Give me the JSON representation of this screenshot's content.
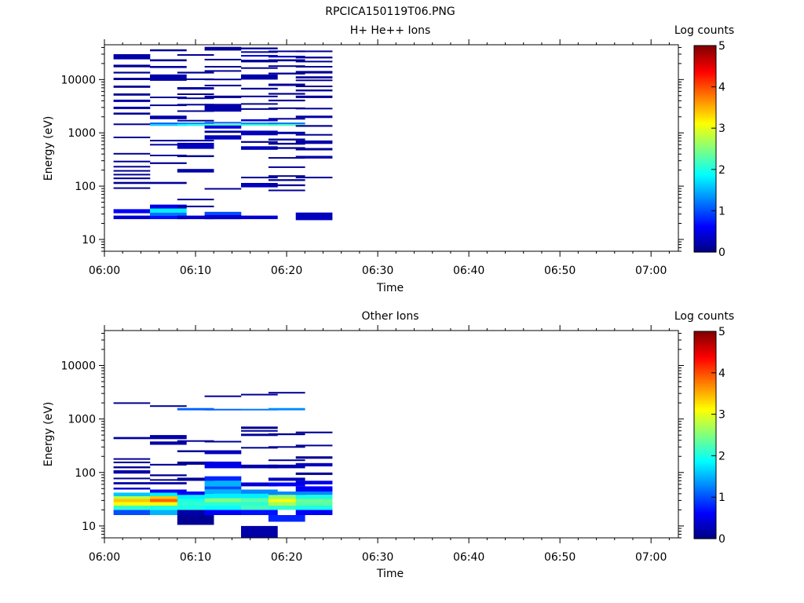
{
  "page_title": "RPCICA150119T06.PNG",
  "colorbar": {
    "label": "Log counts",
    "ticks": [
      "0",
      "1",
      "2",
      "3",
      "4",
      "5"
    ],
    "range": [
      0,
      5
    ]
  },
  "chart_data": [
    {
      "type": "heatmap",
      "title": "H+ He++ Ions",
      "xlabel": "Time",
      "ylabel": "Energy (eV)",
      "x_range": [
        "06:00",
        "07:03"
      ],
      "x_ticks": [
        "06:00",
        "06:10",
        "06:20",
        "06:30",
        "06:40",
        "06:50",
        "07:00"
      ],
      "y_scale": "log",
      "y_range": [
        6,
        45000
      ],
      "y_ticks": [
        "10",
        "100",
        "1000",
        "10000"
      ],
      "time_bins": [
        "06:01",
        "06:05",
        "06:08",
        "06:11",
        "06:15",
        "06:18",
        "06:21"
      ],
      "cells": [
        [
          0,
          24,
          28,
          0.4
        ],
        [
          0,
          31,
          37,
          0.6
        ],
        [
          0,
          90,
          95,
          0.1
        ],
        [
          0,
          110,
          120,
          0.1
        ],
        [
          0,
          135,
          145,
          0.1
        ],
        [
          0,
          160,
          170,
          0.1
        ],
        [
          0,
          190,
          200,
          0.1
        ],
        [
          0,
          225,
          240,
          0.1
        ],
        [
          0,
          280,
          300,
          0.1
        ],
        [
          0,
          400,
          420,
          0.1
        ],
        [
          0,
          800,
          850,
          0.1
        ],
        [
          0,
          1400,
          1500,
          0.1
        ],
        [
          0,
          2200,
          2400,
          0.1
        ],
        [
          0,
          2800,
          3100,
          0.2
        ],
        [
          0,
          3800,
          4200,
          0.2
        ],
        [
          0,
          5000,
          5500,
          0.1
        ],
        [
          0,
          7000,
          7700,
          0.1
        ],
        [
          0,
          9800,
          10800,
          0.1
        ],
        [
          0,
          13000,
          14000,
          0.1
        ],
        [
          0,
          17000,
          19000,
          0.1
        ],
        [
          0,
          24000,
          30000,
          0.2
        ],
        [
          1,
          24,
          28,
          0.7
        ],
        [
          1,
          28,
          32,
          1.2
        ],
        [
          1,
          32,
          38,
          1.8
        ],
        [
          1,
          38,
          45,
          0.5
        ],
        [
          1,
          110,
          120,
          0.1
        ],
        [
          1,
          260,
          280,
          0.1
        ],
        [
          1,
          370,
          390,
          0.1
        ],
        [
          1,
          580,
          620,
          0.2
        ],
        [
          1,
          700,
          740,
          0.1
        ],
        [
          1,
          1400,
          1450,
          1.6
        ],
        [
          1,
          1500,
          1560,
          1.1
        ],
        [
          1,
          1800,
          2100,
          0.2
        ],
        [
          1,
          3200,
          3400,
          0.1
        ],
        [
          1,
          4500,
          4800,
          0.1
        ],
        [
          1,
          9500,
          12500,
          0.2
        ],
        [
          1,
          16500,
          18000,
          0.2
        ],
        [
          1,
          22000,
          24000,
          0.1
        ],
        [
          1,
          34000,
          37000,
          0.1
        ],
        [
          2,
          24,
          28,
          0.4
        ],
        [
          2,
          40,
          43,
          0.1
        ],
        [
          2,
          55,
          58,
          0.1
        ],
        [
          2,
          180,
          210,
          0.2
        ],
        [
          2,
          350,
          380,
          0.1
        ],
        [
          2,
          500,
          650,
          0.3
        ],
        [
          2,
          700,
          740,
          0.1
        ],
        [
          2,
          1400,
          1450,
          1.9
        ],
        [
          2,
          1500,
          1560,
          1.3
        ],
        [
          2,
          1650,
          1750,
          0.1
        ],
        [
          2,
          2500,
          2650,
          0.1
        ],
        [
          2,
          3300,
          3500,
          0.1
        ],
        [
          2,
          4300,
          4600,
          0.2
        ],
        [
          2,
          5200,
          5500,
          0.1
        ],
        [
          2,
          6500,
          7200,
          0.2
        ],
        [
          2,
          10000,
          10500,
          0.1
        ],
        [
          2,
          13000,
          14000,
          0.1
        ],
        [
          2,
          28000,
          30000,
          0.1
        ],
        [
          3,
          24,
          29,
          0.4
        ],
        [
          3,
          29,
          33,
          1.0
        ],
        [
          3,
          88,
          92,
          0.1
        ],
        [
          3,
          750,
          900,
          0.3
        ],
        [
          3,
          1000,
          1100,
          0.1
        ],
        [
          3,
          1200,
          1380,
          0.5
        ],
        [
          3,
          1380,
          1470,
          2.3
        ],
        [
          3,
          1500,
          1600,
          1.1
        ],
        [
          3,
          2500,
          3500,
          0.2
        ],
        [
          3,
          4500,
          5000,
          0.1
        ],
        [
          3,
          7500,
          8000,
          0.1
        ],
        [
          3,
          9800,
          10400,
          0.1
        ],
        [
          3,
          14000,
          15000,
          0.1
        ],
        [
          3,
          17000,
          18000,
          0.1
        ],
        [
          3,
          23000,
          24500,
          0.1
        ],
        [
          3,
          35000,
          41000,
          0.1
        ],
        [
          4,
          24,
          28,
          0.4
        ],
        [
          4,
          95,
          115,
          0.3
        ],
        [
          4,
          140,
          150,
          0.1
        ],
        [
          4,
          480,
          560,
          0.3
        ],
        [
          4,
          650,
          700,
          0.1
        ],
        [
          4,
          900,
          1100,
          0.3
        ],
        [
          4,
          1400,
          1460,
          2.1
        ],
        [
          4,
          1500,
          1560,
          1.3
        ],
        [
          4,
          1650,
          1800,
          0.5
        ],
        [
          4,
          2700,
          2900,
          0.1
        ],
        [
          4,
          3400,
          3600,
          0.1
        ],
        [
          4,
          4700,
          5000,
          0.1
        ],
        [
          4,
          6500,
          7000,
          0.1
        ],
        [
          4,
          10000,
          12500,
          0.2
        ],
        [
          4,
          16000,
          17000,
          0.1
        ],
        [
          4,
          21000,
          23500,
          0.1
        ],
        [
          4,
          27000,
          29000,
          0.6
        ],
        [
          4,
          32000,
          34000,
          0.2
        ],
        [
          4,
          37000,
          40000,
          0.1
        ],
        [
          5,
          82,
          86,
          0.1
        ],
        [
          5,
          100,
          108,
          0.1
        ],
        [
          5,
          125,
          135,
          0.1
        ],
        [
          5,
          150,
          160,
          0.1
        ],
        [
          5,
          220,
          235,
          0.1
        ],
        [
          5,
          330,
          350,
          0.1
        ],
        [
          5,
          500,
          540,
          0.1
        ],
        [
          5,
          600,
          650,
          0.1
        ],
        [
          5,
          720,
          780,
          0.1
        ],
        [
          5,
          950,
          1050,
          0.2
        ],
        [
          5,
          1380,
          1450,
          2.2
        ],
        [
          5,
          1500,
          1560,
          1.2
        ],
        [
          5,
          1800,
          1900,
          0.1
        ],
        [
          5,
          2800,
          3000,
          0.1
        ],
        [
          5,
          3900,
          4200,
          0.1
        ],
        [
          5,
          5200,
          5600,
          0.1
        ],
        [
          5,
          7600,
          8400,
          0.1
        ],
        [
          5,
          12500,
          13500,
          0.1
        ],
        [
          5,
          17500,
          18500,
          0.1
        ],
        [
          5,
          22000,
          24000,
          0.1
        ],
        [
          5,
          26000,
          28000,
          0.3
        ],
        [
          5,
          33000,
          35000,
          0.1
        ],
        [
          6,
          23,
          32,
          0.3
        ],
        [
          6,
          140,
          150,
          0.1
        ],
        [
          6,
          330,
          370,
          0.2
        ],
        [
          6,
          470,
          520,
          0.1
        ],
        [
          6,
          620,
          720,
          0.2
        ],
        [
          6,
          900,
          950,
          0.1
        ],
        [
          6,
          1300,
          1400,
          0.1
        ],
        [
          6,
          1900,
          2100,
          0.2
        ],
        [
          6,
          2800,
          2950,
          0.1
        ],
        [
          6,
          4500,
          5000,
          0.1
        ],
        [
          6,
          6000,
          6500,
          0.1
        ],
        [
          6,
          7200,
          7700,
          0.1
        ],
        [
          6,
          9500,
          10000,
          0.1
        ],
        [
          6,
          10500,
          11500,
          0.1
        ],
        [
          6,
          13000,
          14500,
          0.1
        ],
        [
          6,
          17000,
          18000,
          0.1
        ],
        [
          6,
          21000,
          22500,
          0.1
        ],
        [
          6,
          25000,
          27000,
          0.1
        ],
        [
          6,
          33000,
          35000,
          0.1
        ]
      ]
    },
    {
      "type": "heatmap",
      "title": "Other Ions",
      "xlabel": "Time",
      "ylabel": "Energy (eV)",
      "x_range": [
        "06:00",
        "07:03"
      ],
      "x_ticks": [
        "06:00",
        "06:10",
        "06:20",
        "06:30",
        "06:40",
        "06:50",
        "07:00"
      ],
      "y_scale": "log",
      "y_range": [
        6,
        45000
      ],
      "y_ticks": [
        "10",
        "100",
        "1000",
        "10000"
      ],
      "time_bins": [
        "06:01",
        "06:05",
        "06:08",
        "06:11",
        "06:15",
        "06:18",
        "06:21"
      ],
      "cells": [
        [
          0,
          16,
          20,
          1.0
        ],
        [
          0,
          20,
          24,
          2.1
        ],
        [
          0,
          24,
          28,
          3.1
        ],
        [
          0,
          28,
          32,
          3.4
        ],
        [
          0,
          32,
          36,
          2.8
        ],
        [
          0,
          36,
          42,
          1.6
        ],
        [
          0,
          48,
          52,
          0.4
        ],
        [
          0,
          60,
          66,
          0.2
        ],
        [
          0,
          75,
          80,
          0.1
        ],
        [
          0,
          95,
          110,
          0.2
        ],
        [
          0,
          120,
          130,
          0.1
        ],
        [
          0,
          150,
          160,
          0.1
        ],
        [
          0,
          175,
          185,
          0.1
        ],
        [
          0,
          420,
          460,
          0.2
        ],
        [
          0,
          1950,
          2050,
          0.1
        ],
        [
          1,
          16,
          20,
          1.5
        ],
        [
          1,
          20,
          24,
          2.0
        ],
        [
          1,
          24,
          28,
          3.1
        ],
        [
          1,
          28,
          32,
          3.9
        ],
        [
          1,
          32,
          36,
          3.4
        ],
        [
          1,
          36,
          42,
          1.8
        ],
        [
          1,
          42,
          48,
          0.6
        ],
        [
          1,
          60,
          66,
          0.2
        ],
        [
          1,
          70,
          75,
          0.1
        ],
        [
          1,
          85,
          92,
          0.1
        ],
        [
          1,
          135,
          145,
          0.1
        ],
        [
          1,
          330,
          380,
          0.2
        ],
        [
          1,
          420,
          500,
          0.2
        ],
        [
          1,
          1700,
          1800,
          0.1
        ],
        [
          2,
          10.5,
          16,
          0.1
        ],
        [
          2,
          16,
          20,
          0.2
        ],
        [
          2,
          20,
          24,
          2.0
        ],
        [
          2,
          24,
          28,
          2.1
        ],
        [
          2,
          28,
          32,
          2.0
        ],
        [
          2,
          32,
          38,
          1.8
        ],
        [
          2,
          38,
          44,
          0.6
        ],
        [
          2,
          70,
          80,
          0.1
        ],
        [
          2,
          140,
          160,
          0.1
        ],
        [
          2,
          240,
          260,
          0.1
        ],
        [
          2,
          380,
          400,
          0.1
        ],
        [
          2,
          1450,
          1600,
          1.1
        ],
        [
          3,
          16,
          20,
          0.6
        ],
        [
          3,
          20,
          24,
          1.9
        ],
        [
          3,
          24,
          28,
          2.1
        ],
        [
          3,
          28,
          33,
          2.5
        ],
        [
          3,
          33,
          40,
          1.8
        ],
        [
          3,
          40,
          48,
          1.5
        ],
        [
          3,
          48,
          55,
          1.0
        ],
        [
          3,
          55,
          70,
          1.5
        ],
        [
          3,
          70,
          85,
          0.8
        ],
        [
          3,
          120,
          160,
          0.5
        ],
        [
          3,
          220,
          260,
          0.3
        ],
        [
          3,
          370,
          390,
          0.1
        ],
        [
          3,
          1450,
          1550,
          1.1
        ],
        [
          3,
          2600,
          2750,
          0.1
        ],
        [
          4,
          6,
          10,
          0.2
        ],
        [
          4,
          16,
          20,
          0.7
        ],
        [
          4,
          20,
          24,
          2.2
        ],
        [
          4,
          24,
          28,
          2.1
        ],
        [
          4,
          28,
          33,
          2.3
        ],
        [
          4,
          33,
          40,
          1.8
        ],
        [
          4,
          40,
          48,
          1.3
        ],
        [
          4,
          55,
          65,
          0.4
        ],
        [
          4,
          120,
          140,
          0.2
        ],
        [
          4,
          280,
          300,
          0.1
        ],
        [
          4,
          480,
          530,
          0.1
        ],
        [
          4,
          580,
          620,
          0.1
        ],
        [
          4,
          650,
          720,
          0.1
        ],
        [
          4,
          1450,
          1550,
          1.2
        ],
        [
          4,
          2800,
          2950,
          0.1
        ],
        [
          5,
          12,
          16,
          0.8
        ],
        [
          5,
          20,
          24,
          2.1
        ],
        [
          5,
          24,
          28,
          2.7
        ],
        [
          5,
          28,
          32,
          3.1
        ],
        [
          5,
          32,
          38,
          2.6
        ],
        [
          5,
          38,
          44,
          1.3
        ],
        [
          5,
          55,
          65,
          0.6
        ],
        [
          5,
          70,
          80,
          0.3
        ],
        [
          5,
          120,
          140,
          0.2
        ],
        [
          5,
          165,
          175,
          0.1
        ],
        [
          5,
          290,
          310,
          0.1
        ],
        [
          5,
          500,
          540,
          0.1
        ],
        [
          5,
          1450,
          1600,
          1.3
        ],
        [
          5,
          3000,
          3200,
          0.1
        ],
        [
          6,
          16,
          20,
          0.6
        ],
        [
          6,
          20,
          24,
          2.0
        ],
        [
          6,
          24,
          28,
          2.3
        ],
        [
          6,
          28,
          32,
          2.4
        ],
        [
          6,
          32,
          38,
          2.0
        ],
        [
          6,
          38,
          44,
          1.3
        ],
        [
          6,
          44,
          55,
          0.6
        ],
        [
          6,
          60,
          70,
          0.5
        ],
        [
          6,
          90,
          100,
          0.1
        ],
        [
          6,
          130,
          150,
          0.3
        ],
        [
          6,
          180,
          200,
          0.1
        ],
        [
          6,
          310,
          330,
          0.1
        ],
        [
          6,
          540,
          580,
          0.1
        ]
      ]
    }
  ]
}
